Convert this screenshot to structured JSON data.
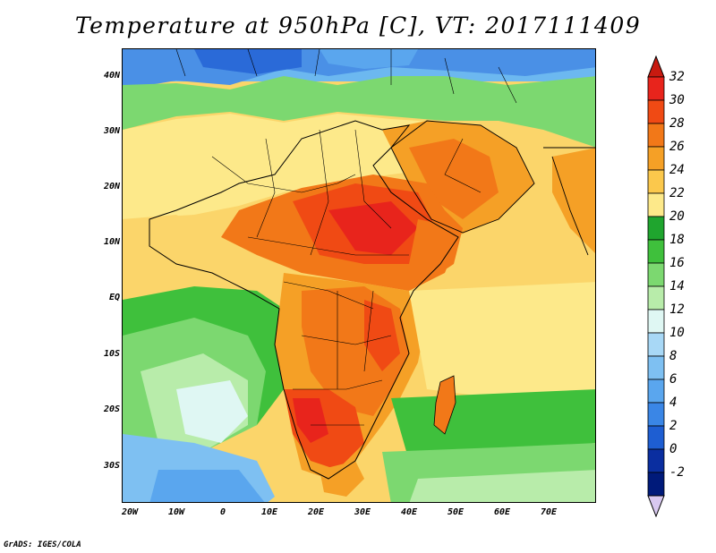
{
  "title": "Temperature at 950hPa [C], VT: 2017111409",
  "credit": "GrADS: IGES/COLA",
  "map": {
    "region": "Africa and Middle East",
    "lon_range": [
      -22,
      80
    ],
    "lat_range": [
      -37,
      45
    ],
    "y_ticks": [
      "40N",
      "30N",
      "20N",
      "10N",
      "EQ",
      "10S",
      "20S",
      "30S"
    ],
    "x_ticks": [
      "20W",
      "10W",
      "0",
      "10E",
      "20E",
      "30E",
      "40E",
      "50E",
      "60E",
      "70E"
    ]
  },
  "colorbar": {
    "labels": [
      "32",
      "30",
      "28",
      "26",
      "24",
      "22",
      "20",
      "18",
      "16",
      "14",
      "12",
      "10",
      "8",
      "6",
      "4",
      "2",
      "0",
      "-2"
    ],
    "colors": [
      "#e8241c",
      "#f04a14",
      "#f27818",
      "#f5a026",
      "#fbc84c",
      "#fde98a",
      "#1fa52e",
      "#3fc03c",
      "#7cd870",
      "#b8ecaa",
      "#dff7f3",
      "#a8d8f6",
      "#7ec0f2",
      "#5aa6ee",
      "#3a86e6",
      "#1e5ed2",
      "#0a2ea0",
      "#001a7a"
    ],
    "top_triangle_color": "#c81a10",
    "bottom_triangle_color": "#d8c8f0"
  }
}
